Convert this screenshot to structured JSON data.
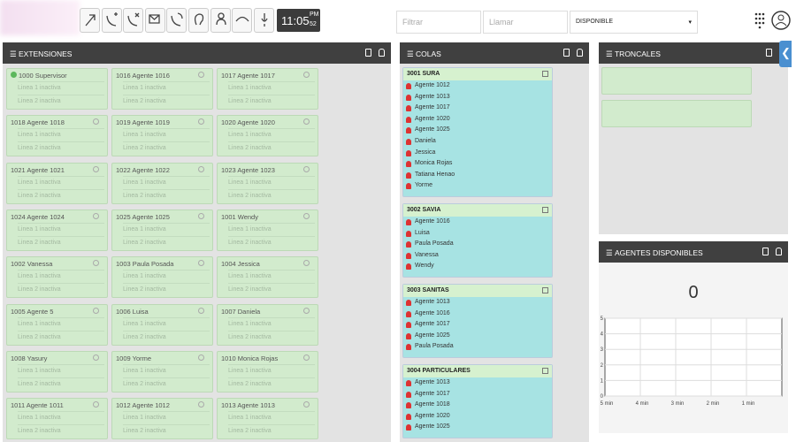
{
  "toolbar": {
    "clock": {
      "time": "11:05",
      "period": "PM",
      "seconds": "52"
    },
    "filter_placeholder": "Filtrar",
    "call_placeholder": "Llamar",
    "status": "DISPONIBLE"
  },
  "extensions": {
    "title": "EXTENSIONES",
    "items": [
      {
        "name": "1000 Supervisor",
        "lines": [
          "Linea 1 inactiva",
          "Linea 2 inactiva"
        ]
      },
      {
        "name": "1016 Agente 1016",
        "lines": [
          "Linea 1 inactiva",
          "Linea 2 inactiva"
        ]
      },
      {
        "name": "1017 Agente 1017",
        "lines": [
          "Linea 1 inactiva",
          "Linea 2 inactiva"
        ]
      },
      {
        "name": "1018 Agente 1018",
        "lines": [
          "Linea 1 inactiva",
          "Linea 2 inactiva"
        ]
      },
      {
        "name": "1019 Agente 1019",
        "lines": [
          "Linea 1 inactiva",
          "Linea 2 inactiva"
        ]
      },
      {
        "name": "1020 Agente 1020",
        "lines": [
          "Linea 1 inactiva",
          "Linea 2 inactiva"
        ]
      },
      {
        "name": "1021 Agente 1021",
        "lines": [
          "Linea 1 inactiva",
          "Linea 2 inactiva"
        ]
      },
      {
        "name": "1022 Agente 1022",
        "lines": [
          "Linea 1 inactiva",
          "Linea 2 inactiva"
        ]
      },
      {
        "name": "1023 Agente 1023",
        "lines": [
          "Linea 1 inactiva",
          "Linea 2 inactiva"
        ]
      },
      {
        "name": "1024 Agente 1024",
        "lines": [
          "Linea 1 inactiva",
          "Linea 2 inactiva"
        ]
      },
      {
        "name": "1025 Agente 1025",
        "lines": [
          "Linea 1 inactiva",
          "Linea 2 inactiva"
        ]
      },
      {
        "name": "1001 Wendy",
        "lines": [
          "Linea 1 inactiva",
          "Linea 2 inactiva"
        ]
      },
      {
        "name": "1002 Vanessa",
        "lines": [
          "Linea 1 inactiva",
          "Linea 2 inactiva"
        ]
      },
      {
        "name": "1003 Paula Posada",
        "lines": [
          "Linea 1 inactiva",
          "Linea 2 inactiva"
        ]
      },
      {
        "name": "1004 Jessica",
        "lines": [
          "Linea 1 inactiva",
          "Linea 2 inactiva"
        ]
      },
      {
        "name": "1005 Agente 5",
        "lines": [
          "Linea 1 inactiva",
          "Linea 2 inactiva"
        ]
      },
      {
        "name": "1006 Luisa",
        "lines": [
          "Linea 1 inactiva",
          "Linea 2 inactiva"
        ]
      },
      {
        "name": "1007 Daniela",
        "lines": [
          "Linea 1 inactiva",
          "Linea 2 inactiva"
        ]
      },
      {
        "name": "1008 Yasury",
        "lines": [
          "Linea 1 inactiva",
          "Linea 2 inactiva"
        ]
      },
      {
        "name": "1009 Yorme",
        "lines": [
          "Linea 1 inactiva",
          "Linea 2 inactiva"
        ]
      },
      {
        "name": "1010 Monica Rojas",
        "lines": [
          "Linea 1 inactiva",
          "Linea 2 inactiva"
        ]
      },
      {
        "name": "1011 Agente 1011",
        "lines": [
          "Linea 1 inactiva",
          "Linea 2 inactiva"
        ]
      },
      {
        "name": "1012 Agente 1012",
        "lines": [
          "Linea 1 inactiva",
          "Linea 2 inactiva"
        ]
      },
      {
        "name": "1013 Agente 1013",
        "lines": [
          "Linea 1 inactiva",
          "Linea 2 inactiva"
        ]
      }
    ]
  },
  "queues": {
    "title": "COLAS",
    "items": [
      {
        "name": "3001 SURA",
        "agents": [
          "Agente 1012",
          "Agente 1013",
          "Agente 1017",
          "Agente 1020",
          "Agente 1025",
          "Daniela",
          "Jessica",
          "Monica Rojas",
          "Tatiana Henao",
          "Yorme"
        ]
      },
      {
        "name": "3002 SAVIA",
        "agents": [
          "Agente 1016",
          "Luisa",
          "Paula Posada",
          "Vanessa",
          "Wendy"
        ]
      },
      {
        "name": "3003 SANITAS",
        "agents": [
          "Agente 1013",
          "Agente 1016",
          "Agente 1017",
          "Agente 1025",
          "Paula Posada"
        ]
      },
      {
        "name": "3004 PARTICULARES",
        "agents": [
          "Agente 1013",
          "Agente 1017",
          "Agente 1018",
          "Agente 1020",
          "Agente 1025"
        ]
      }
    ]
  },
  "trunks": {
    "title": "TRONCALES"
  },
  "available_agents": {
    "title": "AGENTES DISPONIBLES",
    "count": 0,
    "chart": {
      "ylim": [
        0,
        5
      ],
      "yticks": [
        0,
        1,
        2,
        3,
        4,
        5
      ],
      "categories": [
        "5 min",
        "4 min",
        "3 min",
        "2 min",
        "1 min"
      ]
    }
  }
}
